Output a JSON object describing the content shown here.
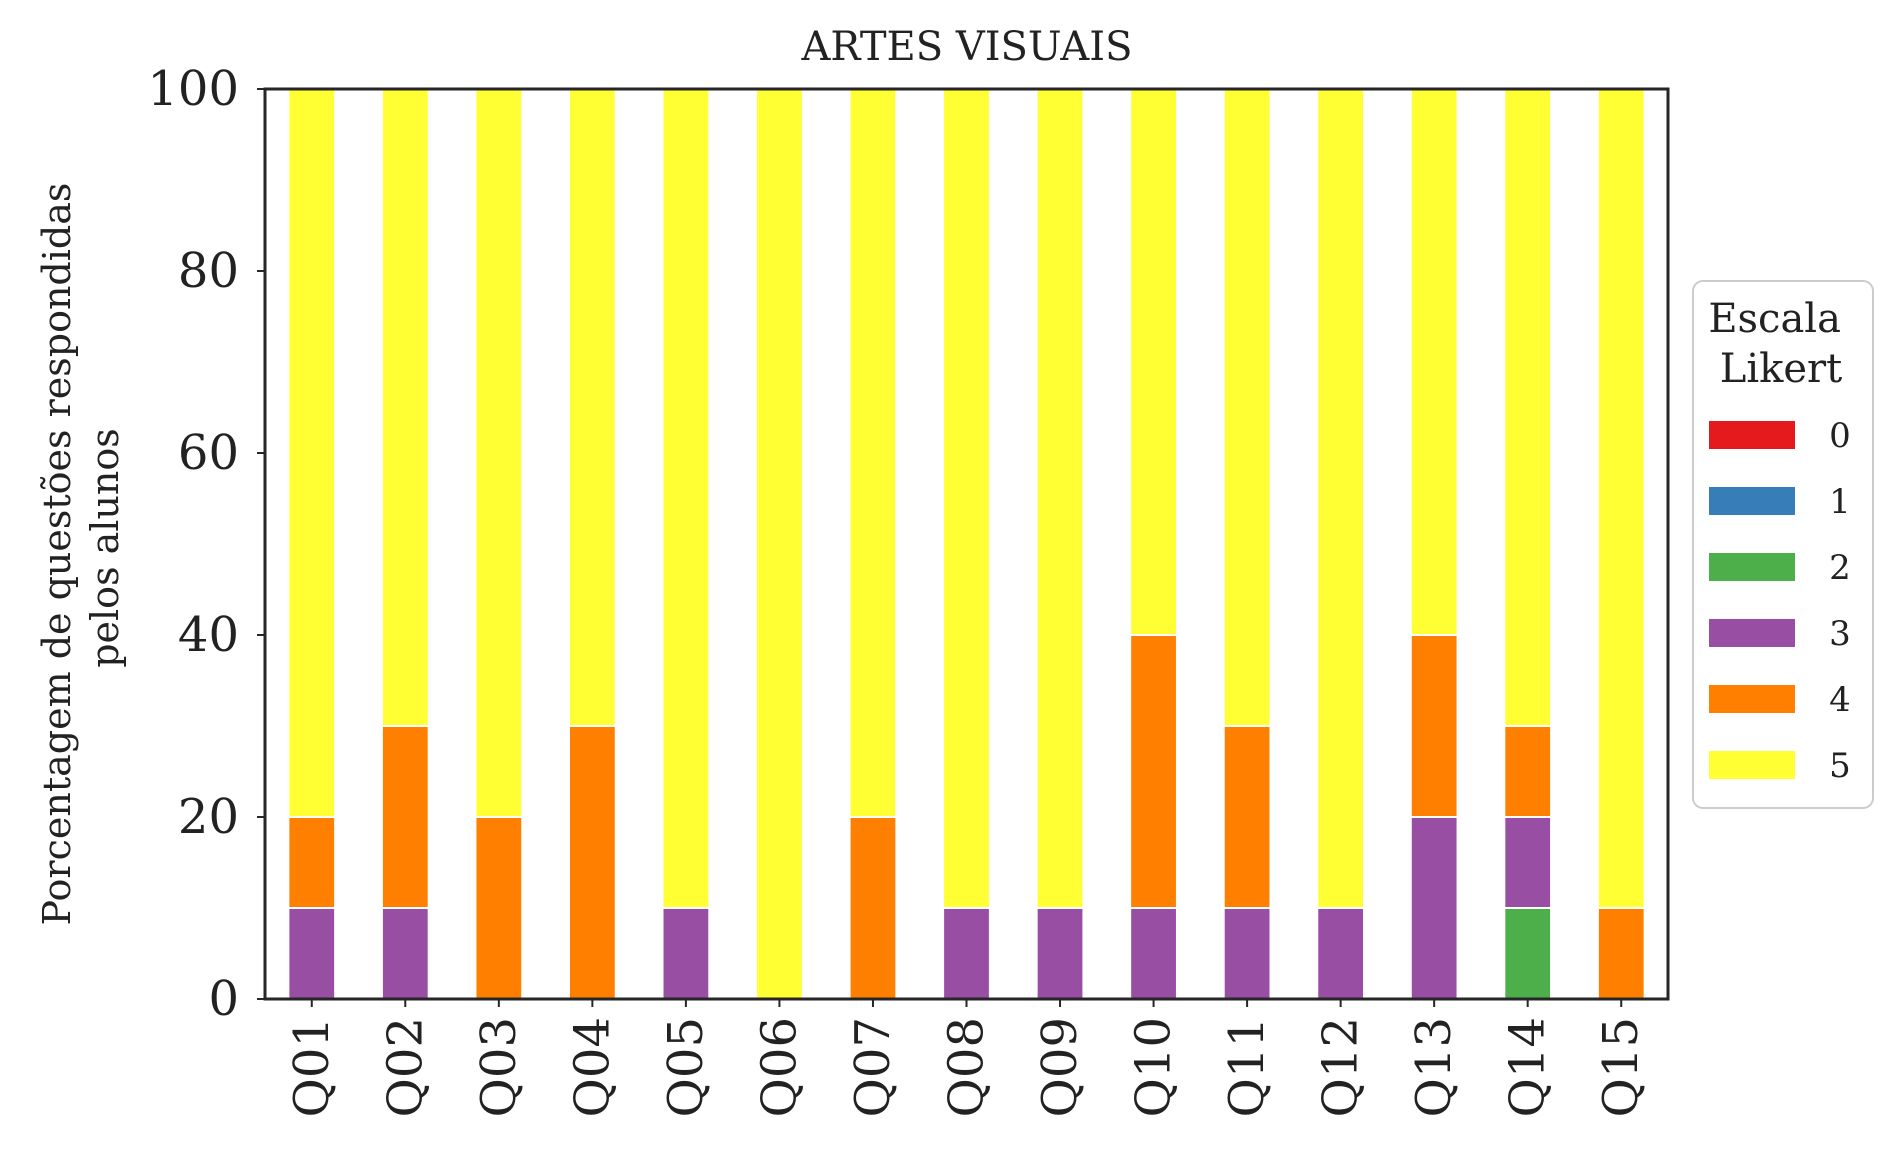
{
  "chart_data": {
    "type": "bar",
    "stacked": true,
    "title": "ARTES VISUAIS",
    "xlabel": "",
    "ylabel": [
      "Porcentagem de questões respondidas",
      "pelos alunos"
    ],
    "ylim": [
      0,
      100
    ],
    "yticks": [
      "0",
      "20",
      "40",
      "60",
      "80",
      "100"
    ],
    "grid": false,
    "categories": [
      "Q01",
      "Q02",
      "Q03",
      "Q04",
      "Q05",
      "Q06",
      "Q07",
      "Q08",
      "Q09",
      "Q10",
      "Q11",
      "Q12",
      "Q13",
      "Q14",
      "Q15"
    ],
    "legend": {
      "title": [
        "Escala",
        "Likert"
      ],
      "placement": "right"
    },
    "series": [
      {
        "name": "0",
        "color": "#e41a1c",
        "values": [
          0,
          0,
          0,
          0,
          0,
          0,
          0,
          0,
          0,
          0,
          0,
          0,
          0,
          0,
          0
        ]
      },
      {
        "name": "1",
        "color": "#377eb8",
        "values": [
          0,
          0,
          0,
          0,
          0,
          0,
          0,
          0,
          0,
          0,
          0,
          0,
          0,
          0,
          0
        ]
      },
      {
        "name": "2",
        "color": "#4daf4a",
        "values": [
          0,
          0,
          0,
          0,
          0,
          0,
          0,
          0,
          0,
          0,
          0,
          0,
          0,
          10,
          0
        ]
      },
      {
        "name": "3",
        "color": "#984ea3",
        "values": [
          10,
          10,
          0,
          0,
          10,
          0,
          0,
          10,
          10,
          10,
          10,
          10,
          20,
          10,
          0
        ]
      },
      {
        "name": "4",
        "color": "#ff7f00",
        "values": [
          10,
          20,
          20,
          30,
          0,
          0,
          20,
          0,
          0,
          30,
          20,
          0,
          20,
          10,
          10
        ]
      },
      {
        "name": "5",
        "color": "#ffff33",
        "values": [
          80,
          70,
          80,
          70,
          90,
          100,
          80,
          90,
          90,
          60,
          70,
          90,
          60,
          70,
          90
        ]
      }
    ]
  }
}
